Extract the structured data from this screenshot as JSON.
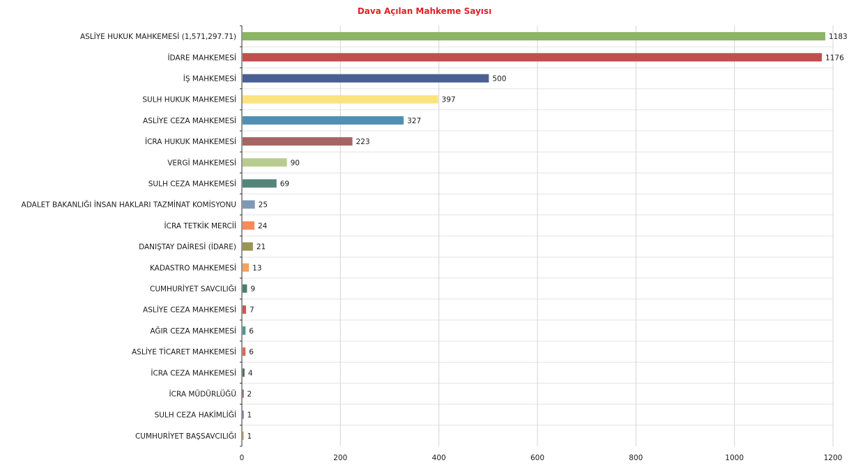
{
  "chart_data": {
    "type": "bar",
    "orientation": "horizontal",
    "title": "Dava Açılan Mahkeme Sayısı",
    "title_color": "#e31e24",
    "categories": [
      "ASLİYE HUKUK MAHKEMESİ (1,571,297.71)",
      "İDARE MAHKEMESİ",
      "İŞ MAHKEMESİ",
      "SULH HUKUK MAHKEMESİ",
      "ASLİYE CEZA  MAHKEMESİ",
      "İCRA HUKUK MAHKEMESİ",
      "VERGİ MAHKEMESİ",
      "SULH CEZA MAHKEMESİ",
      "ADALET BAKANLIĞI İNSAN HAKLARI TAZMİNAT KOMİSYONU",
      "İCRA TETKİK MERCİİ",
      "DANIŞTAY DAİRESİ (İDARE)",
      "KADASTRO MAHKEMESİ",
      "CUMHURİYET SAVCILIĞI",
      "ASLİYE CEZA MAHKEMESİ",
      "AĞIR CEZA MAHKEMESİ",
      "ASLİYE TİCARET MAHKEMESİ",
      "İCRA CEZA MAHKEMESİ",
      "İCRA MÜDÜRLÜĞÜ",
      "SULH CEZA HAKİMLİĞİ",
      "CUMHURİYET BAŞSAVCILIĞI"
    ],
    "values": [
      1183,
      1176,
      500,
      397,
      327,
      223,
      90,
      69,
      25,
      24,
      21,
      13,
      9,
      7,
      6,
      6,
      4,
      2,
      1,
      1
    ],
    "value_labels": [
      "1183",
      "1176",
      "500",
      "397",
      "327",
      "223",
      "90",
      "69",
      "25",
      "24",
      "21",
      "13",
      "9",
      "7",
      "6",
      "6",
      "4",
      "2",
      "1",
      "1"
    ],
    "colors": [
      "#8cb465",
      "#c0504d",
      "#4a5f91",
      "#fbe37f",
      "#4f90b2",
      "#a46563",
      "#b8cc8f",
      "#53857a",
      "#7f99b4",
      "#f88a58",
      "#9a9457",
      "#f7a15e",
      "#47806a",
      "#d0544c",
      "#4f9595",
      "#e0675a",
      "#4f6b50",
      "#8a4c4b",
      "#5b6f9b",
      "#c4954a"
    ],
    "xlim": [
      0,
      1200
    ],
    "xticks": [
      0,
      200,
      400,
      600,
      800,
      1000,
      1200
    ],
    "xtick_labels": [
      "0",
      "200",
      "400",
      "600",
      "800",
      "1000",
      "1200"
    ],
    "xlabel": "",
    "ylabel": "",
    "grid": true,
    "legend": "none"
  }
}
